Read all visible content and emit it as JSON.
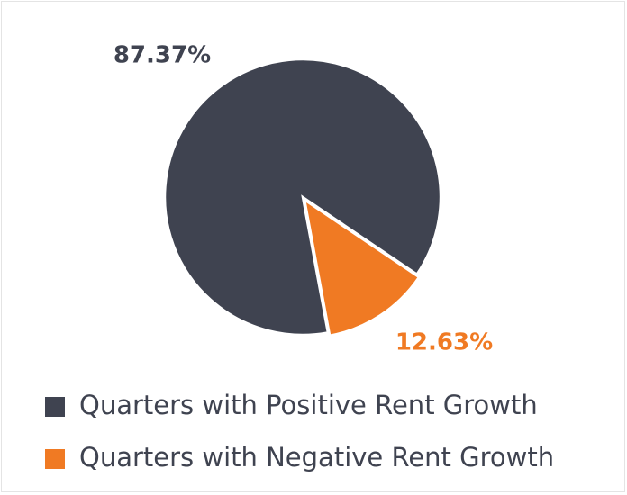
{
  "chart_data": {
    "type": "pie",
    "categories": [
      "Quarters with Positive Rent Growth",
      "Quarters with Negative Rent Growth"
    ],
    "values": [
      87.37,
      12.63
    ],
    "value_labels": [
      "87.37%",
      "12.63%"
    ],
    "colors": [
      "#3f4350",
      "#f07a23"
    ]
  }
}
